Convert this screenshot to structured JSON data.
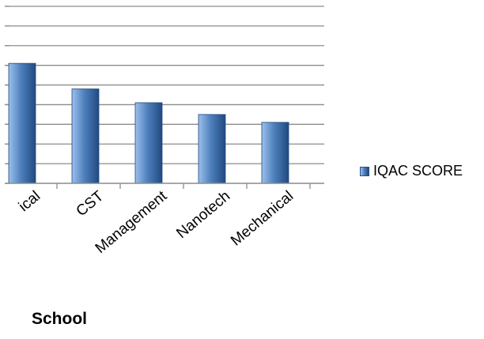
{
  "chart_data": {
    "type": "bar",
    "categories": [
      "ical",
      "CST",
      "Management",
      "Nanotech",
      "Mechanical"
    ],
    "series": [
      {
        "name": "IQAC SCORE",
        "values": [
          6.1,
          4.8,
          4.1,
          3.5,
          3.1
        ]
      }
    ],
    "xlabel": "School",
    "ylabel": "",
    "ylim": [
      0,
      9
    ],
    "grid": true,
    "legend": "right",
    "colors": {
      "bar_light": "#9cc0ec",
      "bar_mid": "#4f81bd",
      "bar_dark": "#21497f",
      "grid": "#8c8c8c",
      "axis": "#8c8c8c"
    }
  }
}
